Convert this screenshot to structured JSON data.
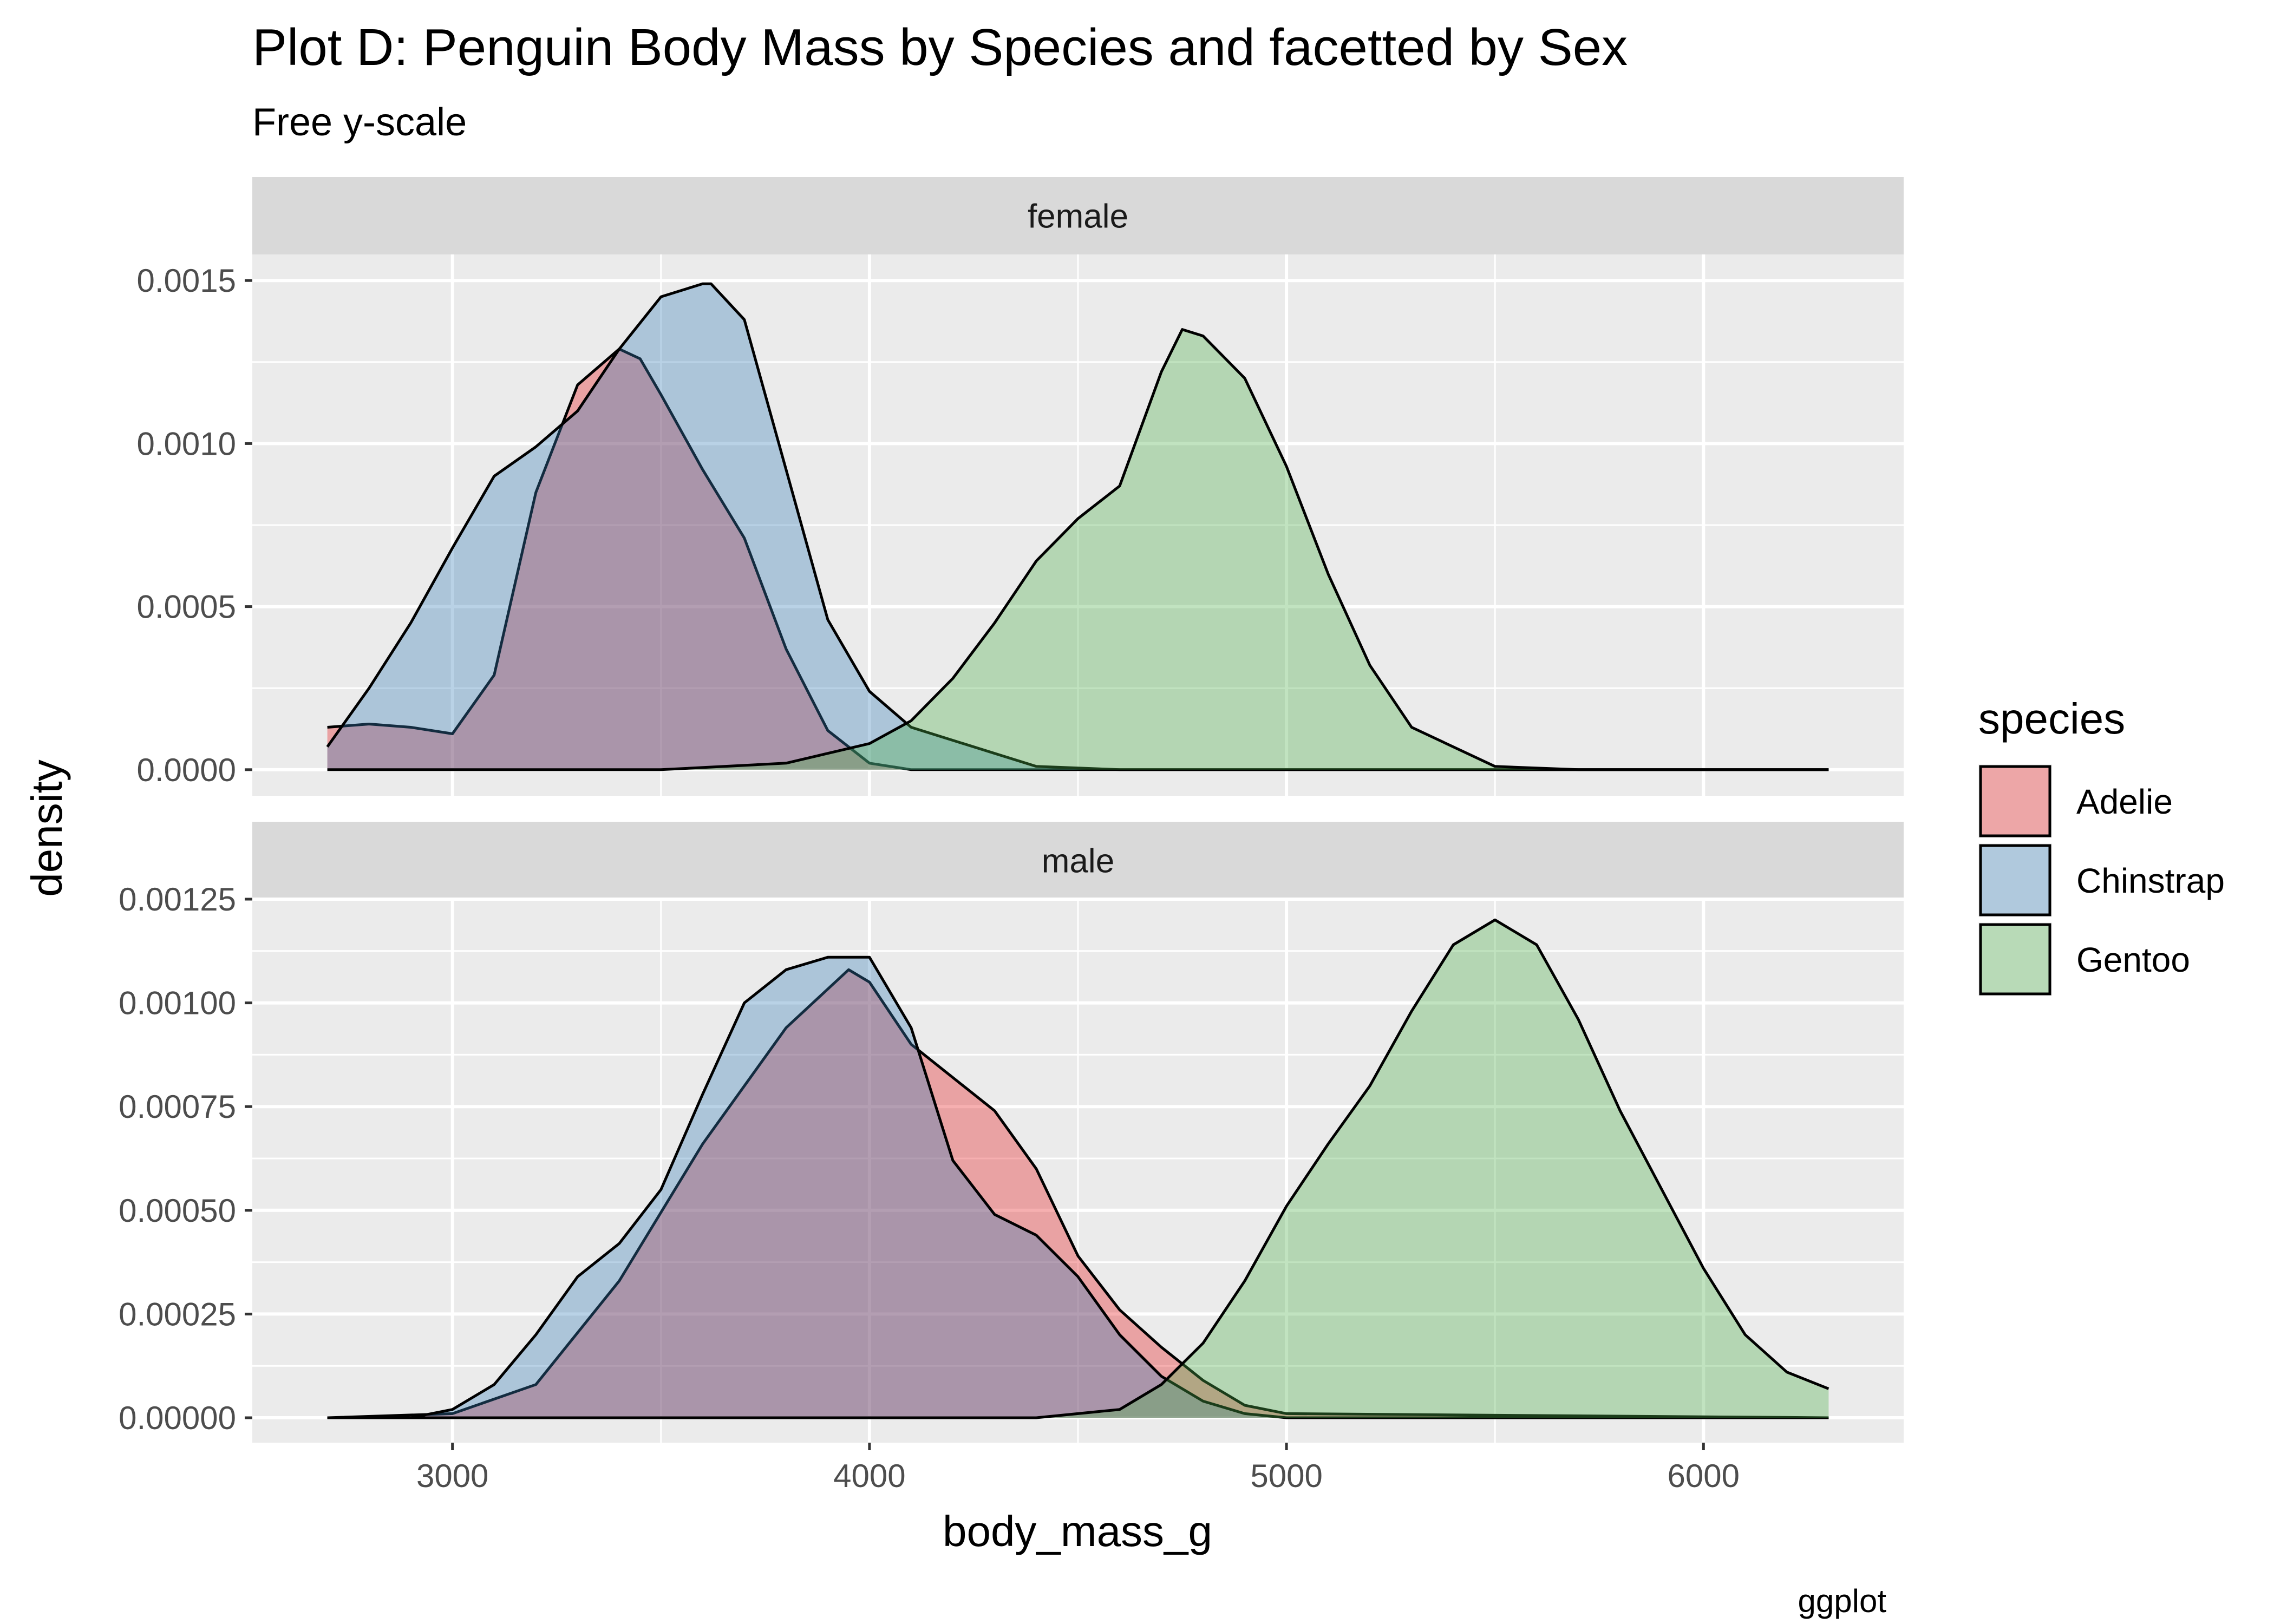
{
  "chart_data": {
    "type": "area",
    "title": "Plot D: Penguin Body Mass by Species and facetted by Sex",
    "subtitle": "Free y-scale",
    "xlabel": "body_mass_g",
    "ylabel": "density",
    "caption": "ggplot",
    "legend": {
      "title": "species",
      "position": "right"
    },
    "xlim": [
      2520,
      6480
    ],
    "x_ticks": [
      3000,
      4000,
      5000,
      6000
    ],
    "x_tick_labels": [
      "3000",
      "4000",
      "5000",
      "6000"
    ],
    "grid": true,
    "colors": {
      "Adelie": "#E41A1C",
      "Chinstrap": "#377EB8",
      "Gentoo": "#4DAF4A"
    },
    "fill_alpha": 0.35,
    "series_names": [
      "Adelie",
      "Chinstrap",
      "Gentoo"
    ],
    "facets": [
      {
        "label": "female",
        "ylim": [
          -8e-05,
          0.00158
        ],
        "y_ticks": [
          0,
          0.0005,
          0.001,
          0.0015
        ],
        "y_tick_labels": [
          "0.0000",
          "0.0005",
          "0.0010",
          "0.0015"
        ],
        "series": [
          {
            "name": "Adelie",
            "x": [
              2700,
              2800,
              2900,
              3000,
              3100,
              3200,
              3300,
              3400,
              3450,
              3500,
              3600,
              3700,
              3800,
              3900,
              4000,
              4100,
              4200,
              4400,
              4600,
              6300
            ],
            "y": [
              0.00013,
              0.00014,
              0.00013,
              0.00011,
              0.00029,
              0.00085,
              0.00118,
              0.00129,
              0.00126,
              0.00115,
              0.00092,
              0.00071,
              0.00037,
              0.00012,
              2e-05,
              0.0,
              0.0,
              0.0,
              0.0,
              0.0
            ]
          },
          {
            "name": "Chinstrap",
            "x": [
              2700,
              2800,
              2900,
              3000,
              3100,
              3200,
              3300,
              3400,
              3500,
              3600,
              3620,
              3700,
              3800,
              3900,
              4000,
              4100,
              4200,
              4400,
              4600,
              6300
            ],
            "y": [
              7e-05,
              0.00025,
              0.00045,
              0.00068,
              0.0009,
              0.00099,
              0.0011,
              0.00129,
              0.00145,
              0.00149,
              0.00149,
              0.00138,
              0.00092,
              0.00046,
              0.00024,
              0.00013,
              9e-05,
              1e-05,
              0.0,
              0.0
            ]
          },
          {
            "name": "Gentoo",
            "x": [
              2700,
              3500,
              3800,
              4000,
              4100,
              4200,
              4300,
              4400,
              4500,
              4600,
              4700,
              4750,
              4800,
              4900,
              5000,
              5100,
              5200,
              5300,
              5500,
              5700,
              6300
            ],
            "y": [
              0.0,
              0.0,
              2e-05,
              8e-05,
              0.00015,
              0.00028,
              0.00045,
              0.00064,
              0.00077,
              0.00087,
              0.00122,
              0.00135,
              0.00133,
              0.0012,
              0.00093,
              0.0006,
              0.00032,
              0.00013,
              1e-05,
              0.0,
              0.0
            ]
          }
        ]
      },
      {
        "label": "male",
        "ylim": [
          -6e-05,
          0.00125
        ],
        "y_ticks": [
          0,
          0.00025,
          0.0005,
          0.00075,
          0.001,
          0.00125
        ],
        "y_tick_labels": [
          "0.00000",
          "0.00025",
          "0.00050",
          "0.00075",
          "0.00100",
          "0.00125"
        ],
        "series": [
          {
            "name": "Adelie",
            "x": [
              2700,
              3000,
              3200,
              3400,
              3600,
              3800,
              3950,
              4000,
              4100,
              4200,
              4300,
              4400,
              4500,
              4600,
              4700,
              4800,
              4900,
              5000,
              6300
            ],
            "y": [
              0.0,
              1e-05,
              8e-05,
              0.00033,
              0.00066,
              0.00094,
              0.00108,
              0.00105,
              0.0009,
              0.00082,
              0.00074,
              0.0006,
              0.00039,
              0.00026,
              0.00017,
              9e-05,
              3e-05,
              1e-05,
              0.0
            ]
          },
          {
            "name": "Chinstrap",
            "x": [
              2700,
              2900,
              3000,
              3100,
              3200,
              3300,
              3400,
              3500,
              3600,
              3700,
              3800,
              3900,
              4000,
              4100,
              4200,
              4300,
              4400,
              4500,
              4600,
              4700,
              4800,
              4900,
              5000,
              6300
            ],
            "y": [
              0.0,
              0.0,
              2e-05,
              8e-05,
              0.0002,
              0.00034,
              0.00042,
              0.00055,
              0.00078,
              0.001,
              0.00108,
              0.00111,
              0.00111,
              0.00094,
              0.00062,
              0.00049,
              0.00044,
              0.00034,
              0.0002,
              0.0001,
              4e-05,
              1e-05,
              0.0,
              0.0
            ]
          },
          {
            "name": "Gentoo",
            "x": [
              2700,
              4400,
              4600,
              4700,
              4800,
              4900,
              5000,
              5100,
              5200,
              5300,
              5400,
              5500,
              5600,
              5700,
              5800,
              5900,
              6000,
              6100,
              6200,
              6300
            ],
            "y": [
              0.0,
              0.0,
              2e-05,
              8e-05,
              0.00018,
              0.00033,
              0.00051,
              0.00066,
              0.0008,
              0.00098,
              0.00114,
              0.0012,
              0.00114,
              0.00096,
              0.00074,
              0.00055,
              0.00036,
              0.0002,
              0.00011,
              7e-05
            ]
          }
        ]
      }
    ]
  }
}
